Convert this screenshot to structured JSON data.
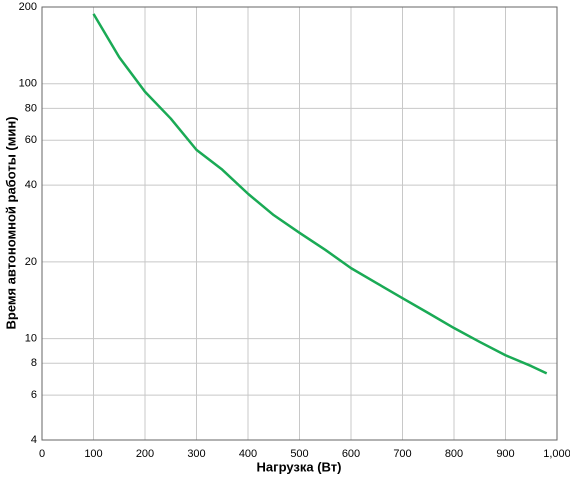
{
  "chart_data": {
    "type": "line",
    "x_label": "Нагрузка (Вт)",
    "y_label": "Время автономной работы (мин)",
    "x": [
      100,
      150,
      200,
      250,
      300,
      350,
      400,
      450,
      500,
      550,
      600,
      650,
      700,
      750,
      800,
      850,
      900,
      950,
      980
    ],
    "series": [
      {
        "color": "#1aaa55",
        "values": [
          188,
          127,
          93,
          73,
          55,
          46,
          37,
          30.5,
          26,
          22.3,
          18.9,
          16.5,
          14.4,
          12.6,
          11.0,
          9.7,
          8.6,
          7.8,
          7.3
        ]
      }
    ],
    "xlim": [
      0,
      1000
    ],
    "xticks": [
      0,
      100,
      200,
      300,
      400,
      500,
      600,
      700,
      800,
      900,
      {
        "value": 1000,
        "label": "1,000"
      }
    ],
    "ylim": [
      4,
      200
    ],
    "yticks": [
      4,
      6,
      8,
      10,
      20,
      40,
      60,
      80,
      100,
      200
    ],
    "y_scale": "log",
    "grid": true
  }
}
